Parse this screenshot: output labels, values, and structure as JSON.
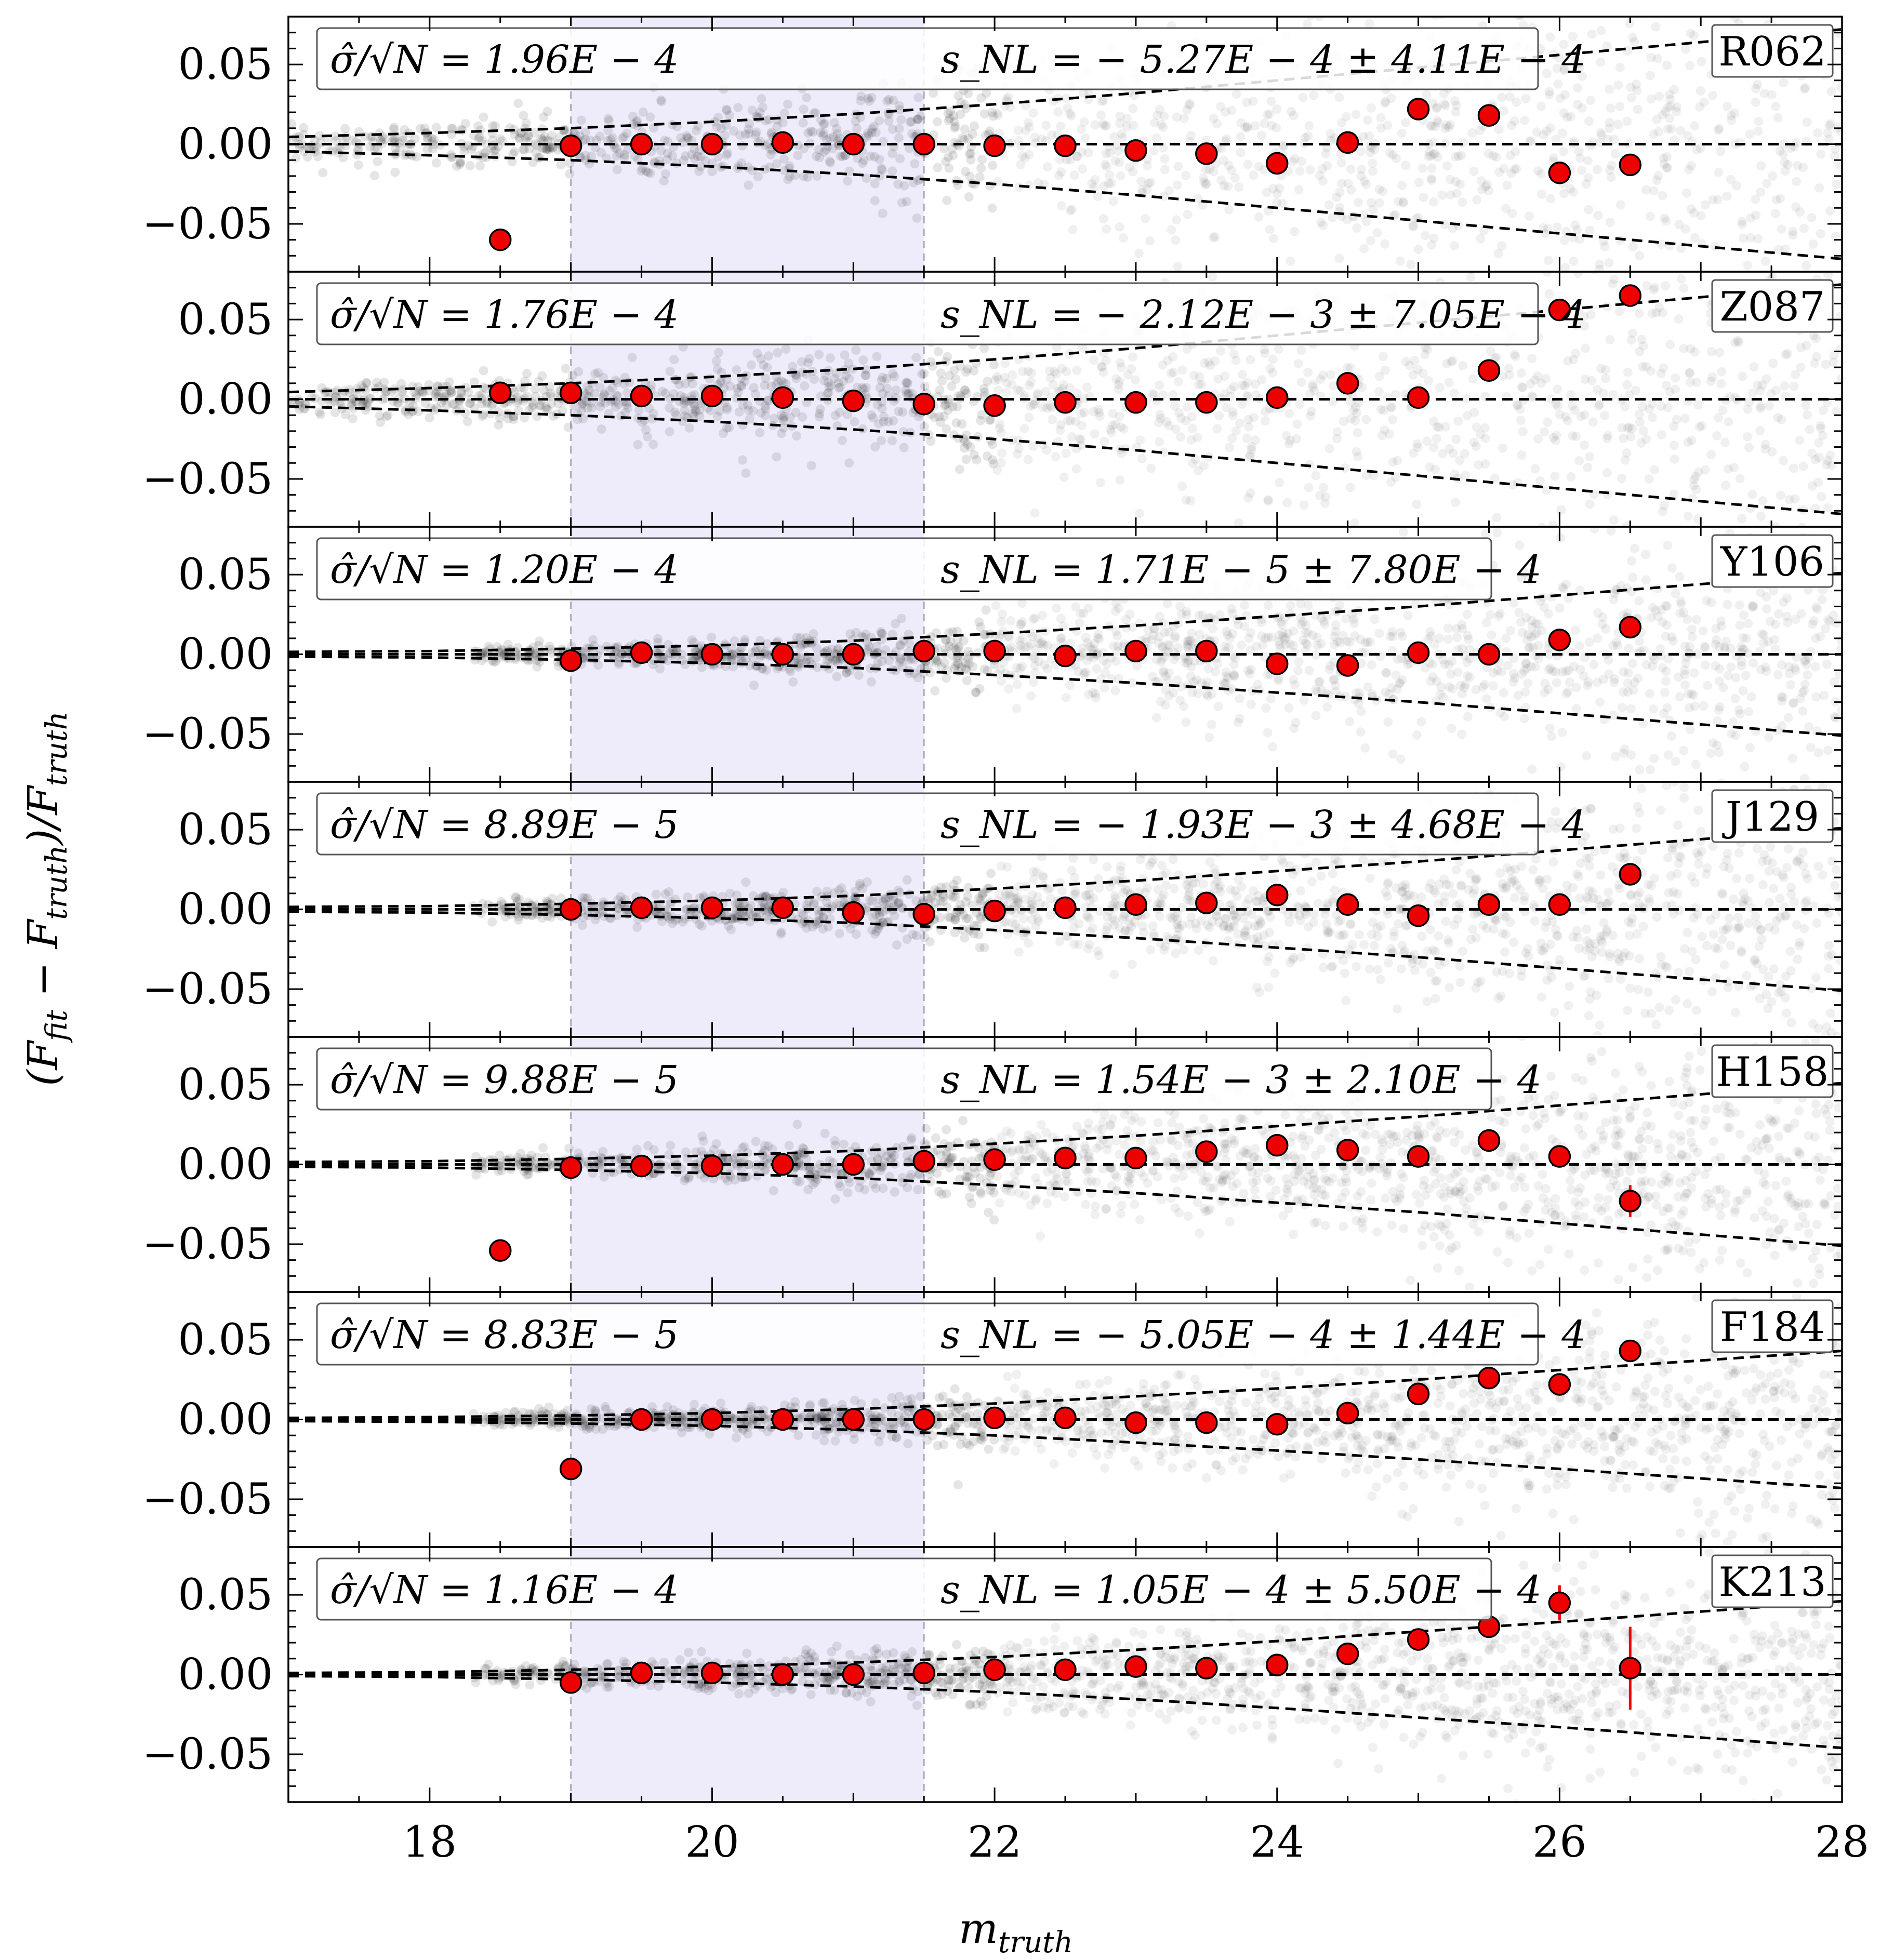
{
  "chart_data": {
    "type": "scatter",
    "xlabel": "m_truth",
    "ylabel": "(F_fit − F_truth)/F_truth",
    "xlim": [
      17,
      28
    ],
    "ylim": [
      -0.08,
      0.08
    ],
    "x_ticks": [
      "18",
      "20",
      "22",
      "24",
      "26",
      "28"
    ],
    "y_ticks": [
      "0.05",
      "0.00",
      "−0.05"
    ],
    "x_tick_values": [
      18,
      20,
      22,
      24,
      26,
      28
    ],
    "y_tick_values": [
      0.05,
      0.0,
      -0.05
    ],
    "shaded_region": [
      19,
      21.5
    ],
    "series_x": [
      18.5,
      19,
      19.5,
      20,
      20.5,
      21,
      21.5,
      22,
      22.5,
      23,
      23.5,
      24,
      24.5,
      25,
      25.5,
      26,
      26.5
    ],
    "panels": [
      {
        "band": "R062",
        "sigma_text": "σ̂/√N = 1.96E − 4",
        "snl_text": "s_NL = − 5.27E − 4 ± 4.11E − 4",
        "values": [
          -0.06,
          -0.001,
          0.0,
          0.0,
          0.001,
          0.0,
          0.0,
          -0.001,
          -0.001,
          -0.004,
          -0.006,
          -0.012,
          0.001,
          0.022,
          0.018,
          -0.018,
          -0.013
        ],
        "errors": [
          0.003,
          0.001,
          0.001,
          0.001,
          0.001,
          0.001,
          0.001,
          0.001,
          0.001,
          0.001,
          0.001,
          0.001,
          0.002,
          0.002,
          0.002,
          0.003,
          0.004
        ],
        "envelope": [
          [
            17.0,
            0.0045
          ],
          [
            18.0,
            0.007
          ],
          [
            19.0,
            0.01
          ],
          [
            20.0,
            0.014
          ],
          [
            21.0,
            0.019
          ],
          [
            22.0,
            0.025
          ],
          [
            23.0,
            0.032
          ],
          [
            24.0,
            0.04
          ],
          [
            25.0,
            0.048
          ],
          [
            26.0,
            0.056
          ],
          [
            27.0,
            0.064
          ],
          [
            28.0,
            0.072
          ]
        ]
      },
      {
        "band": "Z087",
        "sigma_text": "σ̂/√N = 1.76E − 4",
        "snl_text": "s_NL = − 2.12E − 3 ± 7.05E − 4",
        "values": [
          0.004,
          0.004,
          0.002,
          0.002,
          0.001,
          -0.001,
          -0.003,
          -0.004,
          -0.002,
          -0.002,
          -0.002,
          0.001,
          0.01,
          0.001,
          0.018,
          0.056,
          0.065
        ],
        "errors": [
          0.002,
          0.001,
          0.001,
          0.001,
          0.001,
          0.001,
          0.001,
          0.001,
          0.001,
          0.001,
          0.001,
          0.001,
          0.002,
          0.002,
          0.002,
          0.003,
          0.006
        ],
        "envelope": [
          [
            17.0,
            0.0045
          ],
          [
            18.0,
            0.007
          ],
          [
            19.0,
            0.01
          ],
          [
            20.0,
            0.014
          ],
          [
            21.0,
            0.019
          ],
          [
            22.0,
            0.025
          ],
          [
            23.0,
            0.032
          ],
          [
            24.0,
            0.04
          ],
          [
            25.0,
            0.048
          ],
          [
            26.0,
            0.056
          ],
          [
            27.0,
            0.064
          ],
          [
            28.0,
            0.072
          ]
        ]
      },
      {
        "band": "Y106",
        "sigma_text": "σ̂/√N = 1.20E − 4",
        "snl_text": "s_NL = 1.71E − 5 ± 7.80E − 4",
        "values": [
          null,
          -0.004,
          0.001,
          0.0,
          0.0,
          0.0,
          0.002,
          0.002,
          -0.001,
          0.002,
          0.002,
          -0.006,
          -0.007,
          0.001,
          0.0,
          0.009,
          0.017
        ],
        "errors": [
          0,
          0.001,
          0.001,
          0.001,
          0.001,
          0.001,
          0.001,
          0.001,
          0.001,
          0.001,
          0.001,
          0.001,
          0.001,
          0.001,
          0.002,
          0.002,
          0.003
        ],
        "envelope": [
          [
            17.0,
            0.0015
          ],
          [
            18.0,
            0.002
          ],
          [
            19.0,
            0.0035
          ],
          [
            20.0,
            0.0055
          ],
          [
            21.0,
            0.0085
          ],
          [
            22.0,
            0.013
          ],
          [
            23.0,
            0.018
          ],
          [
            24.0,
            0.024
          ],
          [
            25.0,
            0.03
          ],
          [
            26.0,
            0.037
          ],
          [
            27.0,
            0.044
          ],
          [
            28.0,
            0.051
          ]
        ]
      },
      {
        "band": "J129",
        "sigma_text": "σ̂/√N = 8.89E − 5",
        "snl_text": "s_NL = − 1.93E − 3 ± 4.68E − 4",
        "values": [
          null,
          0.0,
          0.001,
          0.001,
          0.001,
          -0.002,
          -0.003,
          -0.001,
          0.001,
          0.003,
          0.004,
          0.009,
          0.003,
          -0.004,
          0.003,
          0.003,
          0.022
        ],
        "errors": [
          0,
          0.001,
          0.001,
          0.001,
          0.001,
          0.001,
          0.001,
          0.001,
          0.001,
          0.001,
          0.001,
          0.001,
          0.001,
          0.001,
          0.002,
          0.002,
          0.003
        ],
        "envelope": [
          [
            17.0,
            0.0015
          ],
          [
            18.0,
            0.002
          ],
          [
            19.0,
            0.0035
          ],
          [
            20.0,
            0.0055
          ],
          [
            21.0,
            0.0085
          ],
          [
            22.0,
            0.013
          ],
          [
            23.0,
            0.018
          ],
          [
            24.0,
            0.024
          ],
          [
            25.0,
            0.03
          ],
          [
            26.0,
            0.037
          ],
          [
            27.0,
            0.044
          ],
          [
            28.0,
            0.051
          ]
        ]
      },
      {
        "band": "H158",
        "sigma_text": "σ̂/√N = 9.88E − 5",
        "snl_text": "s_NL = 1.54E − 3 ± 2.10E − 4",
        "values": [
          -0.054,
          -0.002,
          -0.001,
          -0.001,
          0.0,
          0.0,
          0.002,
          0.003,
          0.004,
          0.004,
          0.008,
          0.012,
          0.009,
          0.005,
          0.015,
          0.005,
          -0.023
        ],
        "errors": [
          0.002,
          0.001,
          0.001,
          0.001,
          0.001,
          0.001,
          0.001,
          0.001,
          0.001,
          0.001,
          0.001,
          0.001,
          0.001,
          0.001,
          0.002,
          0.002,
          0.01
        ],
        "envelope": [
          [
            17.0,
            0.0015
          ],
          [
            18.0,
            0.002
          ],
          [
            19.0,
            0.0035
          ],
          [
            20.0,
            0.0055
          ],
          [
            21.0,
            0.0085
          ],
          [
            22.0,
            0.013
          ],
          [
            23.0,
            0.018
          ],
          [
            24.0,
            0.024
          ],
          [
            25.0,
            0.03
          ],
          [
            26.0,
            0.037
          ],
          [
            27.0,
            0.044
          ],
          [
            28.0,
            0.051
          ]
        ]
      },
      {
        "band": "F184",
        "sigma_text": "σ̂/√N = 8.83E − 5",
        "snl_text": "s_NL = − 5.05E − 4 ± 1.44E − 4",
        "values": [
          null,
          -0.031,
          0.0,
          0.0,
          0.0,
          0.0,
          0.0,
          0.001,
          0.001,
          -0.002,
          -0.002,
          -0.003,
          0.004,
          0.016,
          0.026,
          0.022,
          0.043
        ],
        "errors": [
          0,
          0.002,
          0.001,
          0.001,
          0.001,
          0.001,
          0.001,
          0.001,
          0.001,
          0.001,
          0.001,
          0.001,
          0.001,
          0.001,
          0.002,
          0.002,
          0.003
        ],
        "envelope": [
          [
            17.0,
            0.001
          ],
          [
            18.0,
            0.0015
          ],
          [
            19.0,
            0.0025
          ],
          [
            20.0,
            0.004
          ],
          [
            21.0,
            0.0065
          ],
          [
            22.0,
            0.01
          ],
          [
            23.0,
            0.0145
          ],
          [
            24.0,
            0.0195
          ],
          [
            25.0,
            0.025
          ],
          [
            26.0,
            0.031
          ],
          [
            27.0,
            0.037
          ],
          [
            28.0,
            0.043
          ]
        ]
      },
      {
        "band": "K213",
        "sigma_text": "σ̂/√N = 1.16E − 4",
        "snl_text": "s_NL = 1.05E − 4 ± 5.50E − 4",
        "values": [
          null,
          -0.005,
          0.001,
          0.001,
          0.0,
          0.0,
          0.001,
          0.003,
          0.003,
          0.005,
          0.004,
          0.006,
          0.013,
          0.022,
          0.03,
          0.045,
          0.004
        ],
        "errors": [
          0,
          0.001,
          0.001,
          0.001,
          0.001,
          0.001,
          0.001,
          0.001,
          0.001,
          0.001,
          0.001,
          0.001,
          0.001,
          0.002,
          0.002,
          0.011,
          0.026
        ],
        "envelope": [
          [
            17.0,
            0.001
          ],
          [
            18.0,
            0.0015
          ],
          [
            19.0,
            0.003
          ],
          [
            20.0,
            0.005
          ],
          [
            21.0,
            0.0075
          ],
          [
            22.0,
            0.011
          ],
          [
            23.0,
            0.0155
          ],
          [
            24.0,
            0.021
          ],
          [
            25.0,
            0.027
          ],
          [
            26.0,
            0.033
          ],
          [
            27.0,
            0.0395
          ],
          [
            28.0,
            0.046
          ]
        ]
      }
    ]
  },
  "colors": {
    "points": "#ee0000",
    "region": "#d9d4f5",
    "cloud": "#000000"
  }
}
